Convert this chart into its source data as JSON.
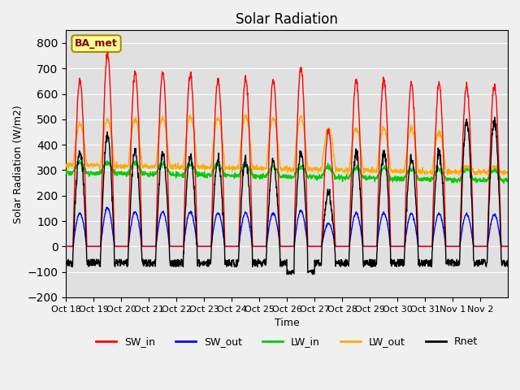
{
  "title": "Solar Radiation",
  "ylabel": "Solar Radiation (W/m2)",
  "xlabel": "Time",
  "ylim": [
    -200,
    850
  ],
  "yticks": [
    -200,
    -100,
    0,
    100,
    200,
    300,
    400,
    500,
    600,
    700,
    800
  ],
  "xtick_labels": [
    "Oct 18",
    "Oct 19",
    "Oct 20",
    "Oct 21",
    "Oct 22",
    "Oct 23",
    "Oct 24",
    "Oct 25",
    "Oct 26",
    "Oct 27",
    "Oct 28",
    "Oct 29",
    "Oct 30",
    "Oct 31",
    "Nov 1",
    "Nov 2"
  ],
  "legend_labels": [
    "SW_in",
    "SW_out",
    "LW_in",
    "LW_out",
    "Rnet"
  ],
  "legend_colors": [
    "#ff0000",
    "#0000ff",
    "#00cc00",
    "#ffaa00",
    "#000000"
  ],
  "bg_color": "#e0e0e0",
  "grid_color": "#ffffff",
  "annotation_text": "BA_met",
  "annotation_bg": "#ffff99",
  "annotation_border": "#aa8800",
  "sw_in_peaks": [
    655,
    760,
    685,
    685,
    680,
    660,
    660,
    655,
    700,
    450,
    650,
    655,
    640,
    640,
    630,
    630
  ],
  "lw_out_peaks": [
    480,
    500,
    500,
    505,
    510,
    505,
    510,
    505,
    510,
    465,
    465,
    465,
    465,
    450,
    315,
    315
  ],
  "n_days": 16,
  "pts_per_day": 96
}
